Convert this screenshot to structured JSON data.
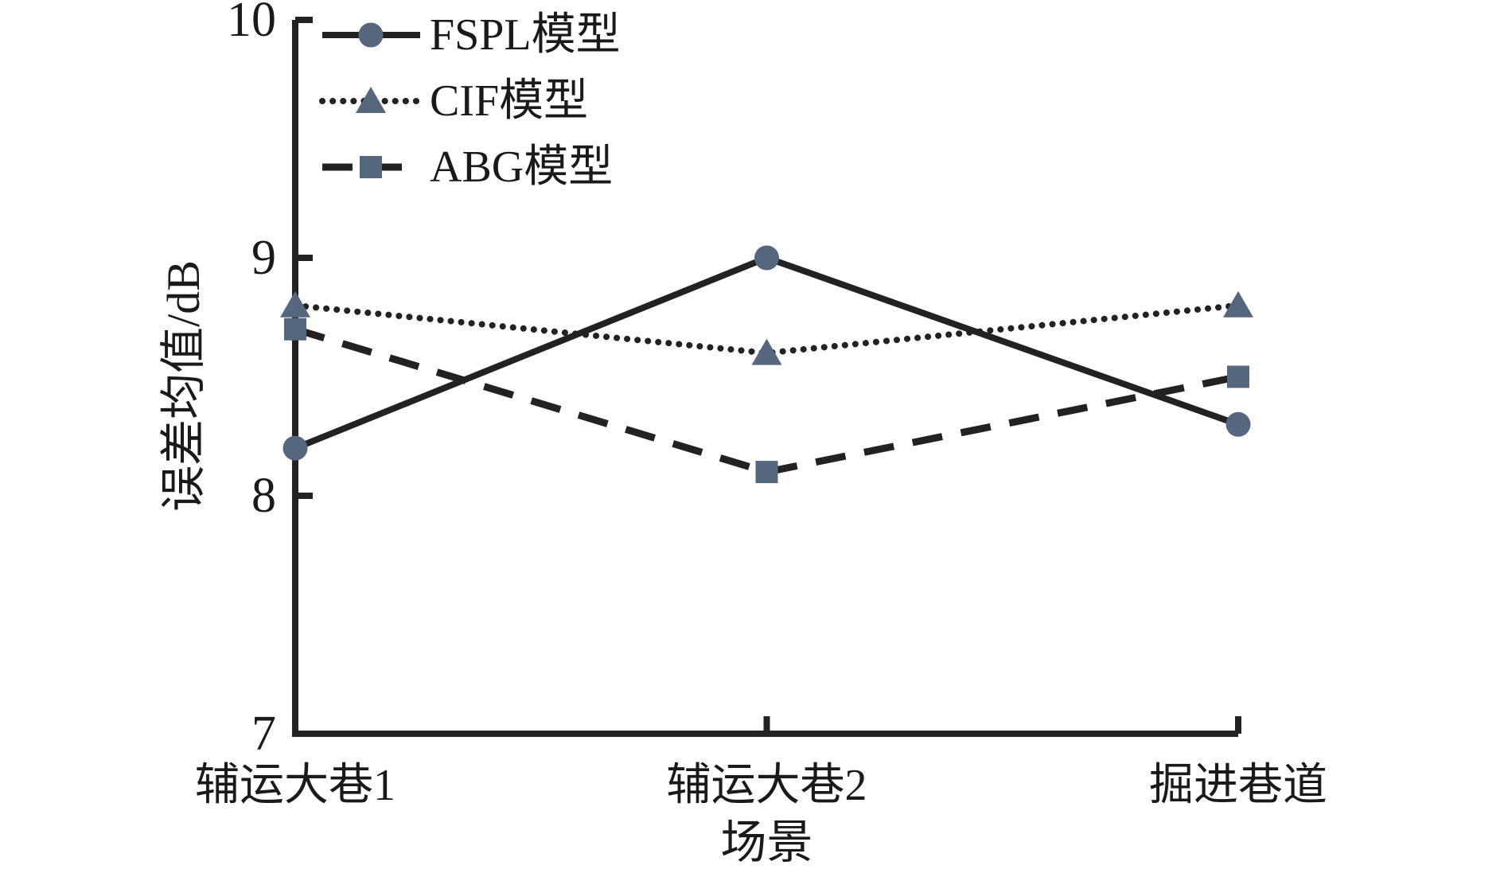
{
  "figure": {
    "background": "#ffffff",
    "description": "Line chart comparing mean error of three path-loss models across three mine tunnel scenes"
  },
  "chart_data": {
    "type": "line",
    "categories": [
      "辅运大巷1",
      "辅运大巷2",
      "掘进巷道"
    ],
    "series": [
      {
        "name": "FSPL模型",
        "values": [
          8.2,
          9.0,
          8.3
        ],
        "marker": "circle",
        "line_style": "solid"
      },
      {
        "name": "CIF模型",
        "values": [
          8.8,
          8.6,
          8.8
        ],
        "marker": "triangle",
        "line_style": "dotted"
      },
      {
        "name": "ABG模型",
        "values": [
          8.7,
          8.1,
          8.5
        ],
        "marker": "square",
        "line_style": "dashed"
      }
    ],
    "title": "",
    "xlabel": "场景",
    "ylabel": "误差均值/dB",
    "ylim": [
      7,
      10
    ],
    "yticks": [
      7,
      8,
      9,
      10
    ],
    "grid": false,
    "legend_position": "upper-left",
    "colors": {
      "line": "#222222",
      "marker_fill": "#56677d",
      "text": "#1a1a1a",
      "background": "#ffffff"
    }
  }
}
